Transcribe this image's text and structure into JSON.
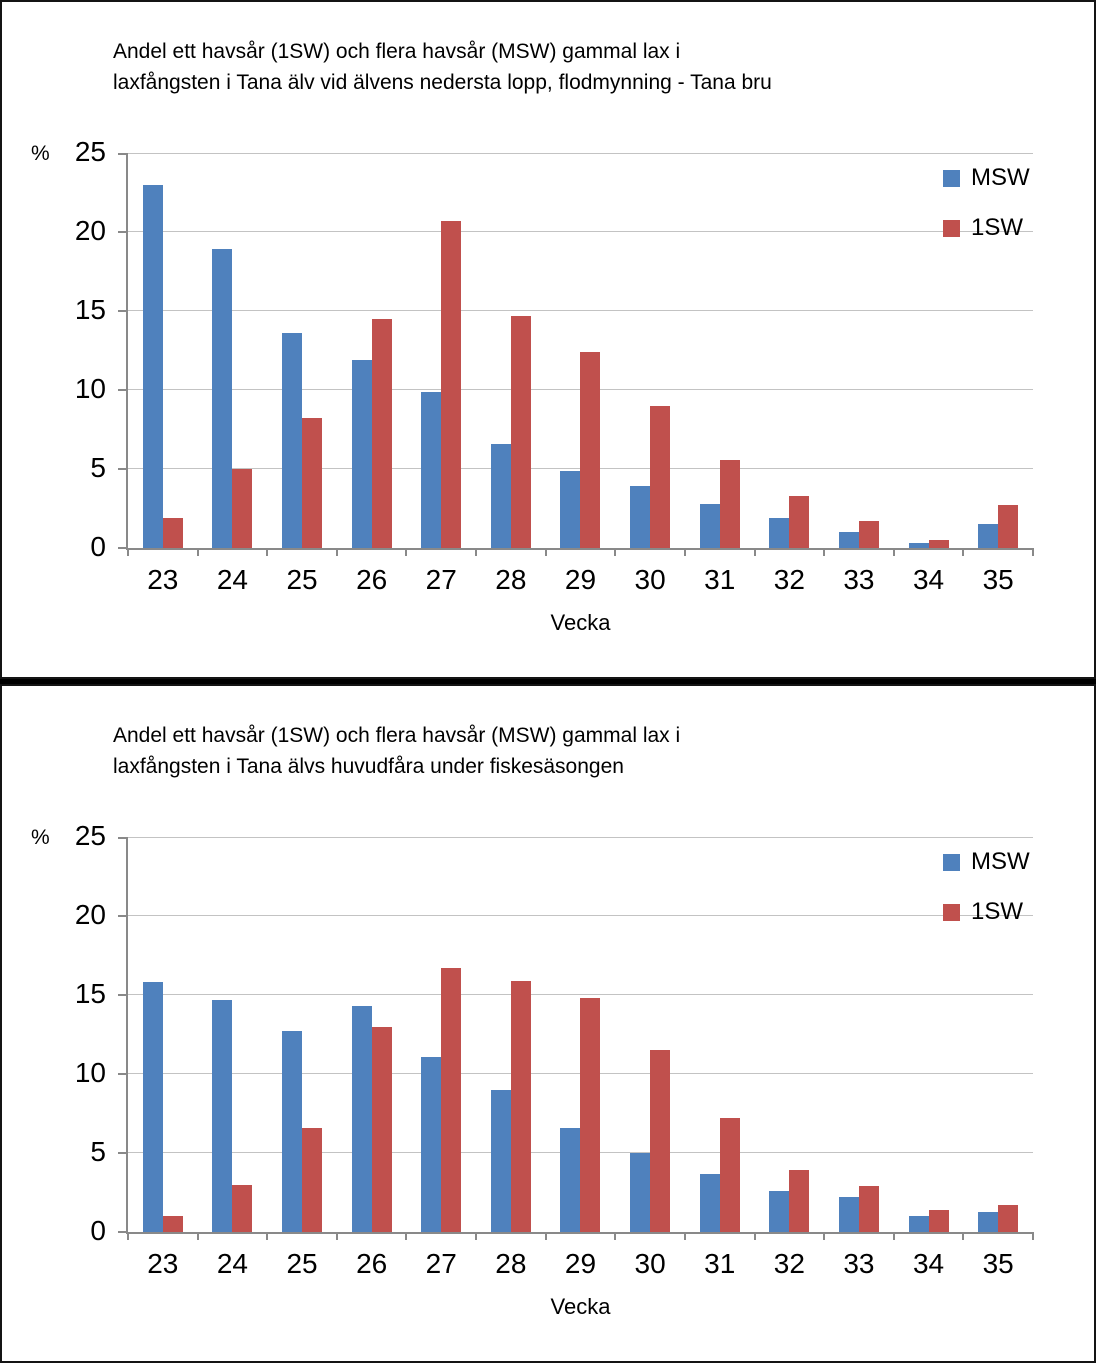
{
  "chart_data": [
    {
      "type": "bar",
      "title": "Andel ett havsår (1SW) och flera havsår (MSW) gammal lax i laxfångsten i Tana älv vid älvens nedersta lopp, flodmynning - Tana bru",
      "title_lines": [
        "Andel ett havsår (1SW) och flera havsår (MSW) gammal lax i",
        "laxfångsten i Tana älv vid älvens nedersta lopp, flodmynning - Tana bru"
      ],
      "y_unit": "%",
      "xlabel": "Vecka",
      "categories": [
        "23",
        "24",
        "25",
        "26",
        "27",
        "28",
        "29",
        "30",
        "31",
        "32",
        "33",
        "34",
        "35"
      ],
      "series": [
        {
          "name": "MSW",
          "color": "#4F81BD",
          "values": [
            23.0,
            18.9,
            13.6,
            11.9,
            9.9,
            6.6,
            4.9,
            3.9,
            2.8,
            1.9,
            1.0,
            0.3,
            1.5
          ]
        },
        {
          "name": "1SW",
          "color": "#C0504D",
          "values": [
            1.9,
            5.0,
            8.2,
            14.5,
            20.7,
            14.7,
            12.4,
            9.0,
            5.6,
            3.3,
            1.7,
            0.5,
            2.7
          ]
        }
      ],
      "ylim": [
        0,
        25
      ],
      "yticks": [
        "0",
        "5",
        "10",
        "15",
        "20",
        "25"
      ],
      "grid": true,
      "legend_position": "top-right"
    },
    {
      "type": "bar",
      "title": "Andel ett havsår (1SW) och flera havsår (MSW) gammal lax i laxfångsten i Tana älvs huvudfåra under fiskesäsongen",
      "title_lines": [
        "Andel ett havsår (1SW) och flera havsår (MSW) gammal lax i",
        "laxfångsten i Tana älvs huvudfåra under fiskesäsongen"
      ],
      "y_unit": "%",
      "xlabel": "Vecka",
      "categories": [
        "23",
        "24",
        "25",
        "26",
        "27",
        "28",
        "29",
        "30",
        "31",
        "32",
        "33",
        "34",
        "35"
      ],
      "series": [
        {
          "name": "MSW",
          "color": "#4F81BD",
          "values": [
            15.8,
            14.7,
            12.7,
            14.3,
            11.1,
            9.0,
            6.6,
            5.0,
            3.7,
            2.6,
            2.2,
            1.0,
            1.3
          ]
        },
        {
          "name": "1SW",
          "color": "#C0504D",
          "values": [
            1.0,
            3.0,
            6.6,
            13.0,
            16.7,
            15.9,
            14.8,
            11.5,
            7.2,
            3.9,
            2.9,
            1.4,
            1.7
          ]
        }
      ],
      "ylim": [
        0,
        25
      ],
      "yticks": [
        "0",
        "5",
        "10",
        "15",
        "20",
        "25"
      ],
      "grid": true,
      "legend_position": "top-right"
    }
  ],
  "colors": {
    "msw": "#4F81BD",
    "sw1": "#C0504D",
    "axis": "#898989",
    "gridline": "#C3C3C3",
    "panel_border": "#141414",
    "panel_background": "#FFFFFF",
    "divider": "#000000"
  }
}
